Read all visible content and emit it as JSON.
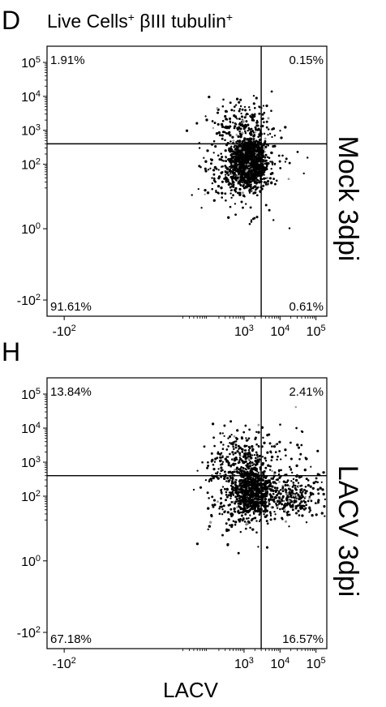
{
  "figure": {
    "title_main": "Live Cells",
    "title_marker": "βIII tubulin"
  },
  "chart_data": [
    {
      "type": "scatter",
      "panel_letter": "D",
      "title": "Live Cells⁺ βIII tubulin⁺",
      "side_label": "Mock 3dpi",
      "xlabel": "",
      "ylabel": "",
      "x_scale": "biexponential",
      "y_scale": "biexponential",
      "x_ticks": [
        {
          "value": -100,
          "base": "-10",
          "exp": "2"
        },
        {
          "value": 1000,
          "base": "10",
          "exp": "3"
        },
        {
          "value": 10000,
          "base": "10",
          "exp": "4"
        },
        {
          "value": 100000,
          "base": "10",
          "exp": "5"
        }
      ],
      "y_ticks": [
        {
          "value": -100,
          "base": "-10",
          "exp": "2"
        },
        {
          "value": 1,
          "base": "10",
          "exp": "0"
        },
        {
          "value": 100,
          "base": "10",
          "exp": "2"
        },
        {
          "value": 1000,
          "base": "10",
          "exp": "3"
        },
        {
          "value": 10000,
          "base": "10",
          "exp": "4"
        },
        {
          "value": 100000,
          "base": "10",
          "exp": "5"
        }
      ],
      "gate": {
        "x": 3000,
        "y": 400
      },
      "quadrants": {
        "upper_left": "1.91%",
        "upper_right": "0.15%",
        "lower_left": "91.61%",
        "lower_right": "0.61%"
      },
      "clusters": [
        {
          "x_log": 3.15,
          "y_log": 2.1,
          "spread_x": 0.22,
          "spread_y": 0.32,
          "n": 1500
        },
        {
          "x_log": 2.95,
          "y_log": 1.75,
          "spread_x": 0.55,
          "spread_y": 0.55,
          "n": 350
        },
        {
          "x_log": 2.95,
          "y_log": 3.15,
          "spread_x": 0.45,
          "spread_y": 0.35,
          "n": 190
        },
        {
          "x_log": 4.6,
          "y_log": 2.0,
          "spread_x": 0.3,
          "spread_y": 0.2,
          "n": 3
        }
      ]
    },
    {
      "type": "scatter",
      "panel_letter": "H",
      "title": "",
      "side_label": "LACV 3dpi",
      "xlabel": "LACV",
      "ylabel": "",
      "x_scale": "biexponential",
      "y_scale": "biexponential",
      "x_ticks": [
        {
          "value": -100,
          "base": "-10",
          "exp": "2"
        },
        {
          "value": 1000,
          "base": "10",
          "exp": "3"
        },
        {
          "value": 10000,
          "base": "10",
          "exp": "4"
        },
        {
          "value": 100000,
          "base": "10",
          "exp": "5"
        }
      ],
      "y_ticks": [
        {
          "value": -100,
          "base": "-10",
          "exp": "2"
        },
        {
          "value": 1,
          "base": "10",
          "exp": "0"
        },
        {
          "value": 100,
          "base": "10",
          "exp": "2"
        },
        {
          "value": 1000,
          "base": "10",
          "exp": "3"
        },
        {
          "value": 10000,
          "base": "10",
          "exp": "4"
        },
        {
          "value": 100000,
          "base": "10",
          "exp": "5"
        }
      ],
      "gate": {
        "x": 3000,
        "y": 400
      },
      "quadrants": {
        "upper_left": "13.84%",
        "upper_right": "2.41%",
        "lower_left": "67.18%",
        "lower_right": "16.57%"
      },
      "clusters": [
        {
          "x_log": 3.2,
          "y_log": 2.15,
          "spread_x": 0.25,
          "spread_y": 0.35,
          "n": 750
        },
        {
          "x_log": 2.9,
          "y_log": 1.9,
          "spread_x": 0.5,
          "spread_y": 0.55,
          "n": 250
        },
        {
          "x_log": 2.9,
          "y_log": 3.2,
          "spread_x": 0.45,
          "spread_y": 0.4,
          "n": 230
        },
        {
          "x_log": 4.3,
          "y_log": 2.0,
          "spread_x": 0.45,
          "spread_y": 0.35,
          "n": 280
        },
        {
          "x_log": 4.3,
          "y_log": 3.15,
          "spread_x": 0.45,
          "spread_y": 0.4,
          "n": 40
        }
      ]
    }
  ]
}
